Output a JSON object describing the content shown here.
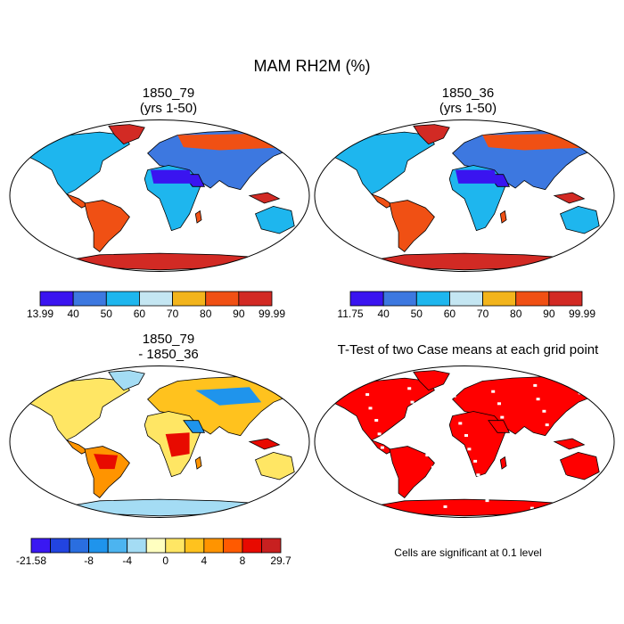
{
  "figure": {
    "title": "MAM RH2M (%)",
    "panels": [
      {
        "id": "a",
        "title_lines": [
          "1850_79",
          "(yrs 1-50)"
        ],
        "variable": "RH2M",
        "season": "MAM",
        "units": "%"
      },
      {
        "id": "b",
        "title_lines": [
          "1850_36",
          "(yrs 1-50)"
        ],
        "variable": "RH2M",
        "season": "MAM",
        "units": "%"
      },
      {
        "id": "c",
        "title_lines": [
          "1850_79",
          "- 1850_36"
        ],
        "variable": "RH2M difference"
      },
      {
        "id": "d",
        "title_lines": [
          "T-Test of two Case means at each grid point"
        ]
      }
    ],
    "note": "Cells are significant at 0.1 level"
  },
  "colorbars": {
    "a": {
      "colors": [
        "#3a14f0",
        "#3d78e0",
        "#1eb6ee",
        "#c4e6f2",
        "#f2b41c",
        "#f05014",
        "#d22a24"
      ],
      "labels": [
        "13.99",
        "40",
        "50",
        "60",
        "70",
        "80",
        "90",
        "99.99"
      ]
    },
    "b": {
      "colors": [
        "#3a14f0",
        "#3d78e0",
        "#1eb6ee",
        "#c4e6f2",
        "#f2b41c",
        "#f05014",
        "#d22a24"
      ],
      "labels": [
        "11.75",
        "40",
        "50",
        "60",
        "70",
        "80",
        "90",
        "99.99"
      ]
    },
    "c": {
      "colors": [
        "#3a18f2",
        "#2244e0",
        "#2a6ee0",
        "#1f94ec",
        "#4cb4f0",
        "#a4dcf4",
        "#ffffc0",
        "#ffe664",
        "#ffc21e",
        "#ff9400",
        "#ff5a00",
        "#e80a00",
        "#c82020"
      ],
      "labels": [
        "-21.58",
        "-8",
        "-4",
        "0",
        "4",
        "8",
        "29.7"
      ],
      "label_at_boundary": [
        0,
        3,
        5,
        7,
        9,
        11,
        13
      ]
    }
  },
  "map_colors": {
    "a": {
      "desert": "#3a14f0",
      "dry": "#3d78e0",
      "mid": "#1eb6ee",
      "moist": "#f05014",
      "wet": "#d22a24",
      "polar": "#d22a24"
    },
    "b": {
      "desert": "#3a14f0",
      "dry": "#3d78e0",
      "mid": "#1eb6ee",
      "moist": "#f05014",
      "wet": "#d22a24",
      "polar": "#d22a24"
    },
    "c": {
      "desert": "#1f94ec",
      "dry": "#ffc21e",
      "mid": "#ffe664",
      "moist": "#ff9400",
      "wet": "#e80a00",
      "polar": "#a4dcf4"
    },
    "d": {
      "desert": "#ff0000",
      "dry": "#ff0000",
      "mid": "#ff0000",
      "moist": "#ff0000",
      "wet": "#ff0000",
      "polar": "#ff0000"
    }
  }
}
